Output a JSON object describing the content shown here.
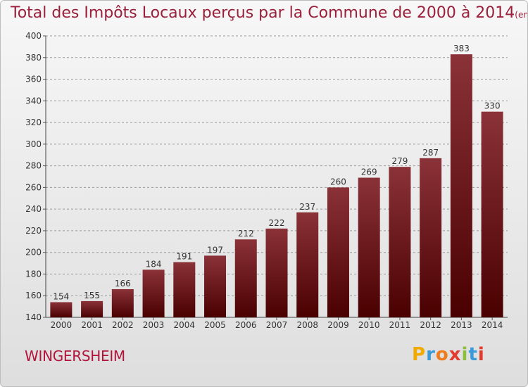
{
  "title": "Total des Impôts Locaux perçus par la Commune de 2000 à 2014",
  "title_unit": "(en milliers d'€)",
  "commune": "WINGERSHEIM",
  "brand": {
    "letters": [
      "P",
      "r",
      "o",
      "x",
      "i",
      "t",
      "i"
    ],
    "colors": [
      "#f2a900",
      "#3a9ad9",
      "#f07b1d",
      "#e23a2d",
      "#8bbf3d",
      "#3a9ad9",
      "#e23a2d"
    ]
  },
  "colors": {
    "bar_top": "#8a3238",
    "bar_bottom": "#4a0000",
    "title": "#9a1f3b",
    "commune": "#b3143a",
    "grid": "#9a9a9a"
  },
  "chart_data": {
    "type": "bar",
    "categories": [
      "2000",
      "2001",
      "2002",
      "2003",
      "2004",
      "2005",
      "2006",
      "2007",
      "2008",
      "2009",
      "2010",
      "2011",
      "2012",
      "2013",
      "2014"
    ],
    "values": [
      154,
      155,
      166,
      184,
      191,
      197,
      212,
      222,
      237,
      260,
      269,
      279,
      287,
      383,
      330
    ],
    "ylim": [
      140,
      400
    ],
    "yticks": [
      140,
      160,
      180,
      200,
      220,
      240,
      260,
      280,
      300,
      320,
      340,
      360,
      380,
      400
    ],
    "grid": true,
    "grid_style": "dashed horizontal",
    "data_labels": true
  }
}
